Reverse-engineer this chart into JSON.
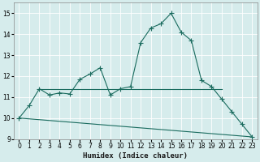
{
  "xlabel": "Humidex (Indice chaleur)",
  "background_color": "#d6ecec",
  "grid_color": "#b8d8d8",
  "line_color": "#1a6b5e",
  "xlim": [
    -0.5,
    23.5
  ],
  "ylim": [
    9,
    15.5
  ],
  "yticks": [
    9,
    10,
    11,
    12,
    13,
    14,
    15
  ],
  "xticks": [
    0,
    1,
    2,
    3,
    4,
    5,
    6,
    7,
    8,
    9,
    10,
    11,
    12,
    13,
    14,
    15,
    16,
    17,
    18,
    19,
    20,
    21,
    22,
    23
  ],
  "curve1_x": [
    0,
    1,
    2,
    3,
    4,
    5,
    6,
    7,
    8,
    9,
    10,
    11,
    12,
    13,
    14,
    15,
    16,
    17,
    18,
    19,
    20,
    21,
    22,
    23
  ],
  "curve1_y": [
    10.0,
    10.6,
    11.4,
    11.1,
    11.2,
    11.15,
    11.85,
    12.1,
    12.4,
    11.1,
    11.4,
    11.5,
    13.6,
    14.3,
    14.5,
    15.0,
    14.1,
    13.7,
    11.8,
    11.5,
    10.9,
    10.3,
    9.7,
    9.1
  ],
  "curve2_x": [
    2,
    3,
    4,
    5,
    6,
    7,
    8,
    9,
    10,
    11,
    12,
    13,
    14,
    15,
    16,
    17,
    18,
    19,
    20
  ],
  "curve2_y": [
    11.4,
    11.4,
    11.4,
    11.4,
    11.4,
    11.4,
    11.4,
    11.4,
    11.4,
    11.4,
    11.4,
    11.4,
    11.4,
    11.4,
    11.4,
    11.4,
    11.4,
    11.4,
    11.4
  ],
  "curve3_x": [
    0,
    23
  ],
  "curve3_y": [
    10.0,
    9.1
  ],
  "marker_size": 2.5,
  "xlabel_fontsize": 6.5,
  "tick_fontsize": 5.5
}
